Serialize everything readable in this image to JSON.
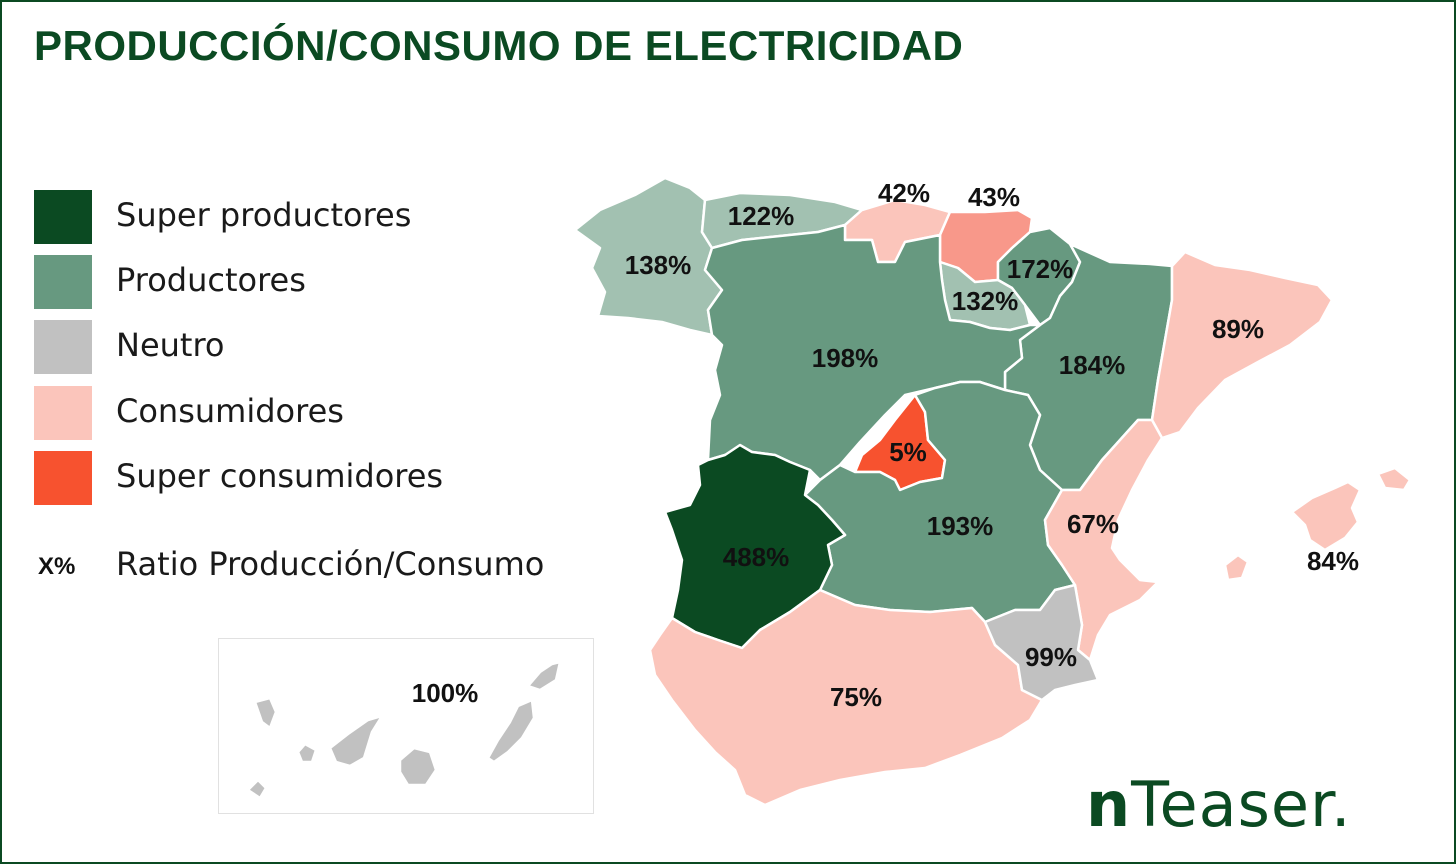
{
  "title": "PRODUCCIÓN/CONSUMO DE ELECTRICIDAD",
  "colors": {
    "super_productores": "#0b4a22",
    "productores": "#679980",
    "productores_light": "#a2c1b1",
    "neutro": "#c1c1c1",
    "consumidores": "#fbc5bb",
    "consumidores_dark": "#f8988a",
    "super_consumidores": "#f7522f",
    "frame": "#0b4a22"
  },
  "legend": {
    "items": [
      {
        "label": "Super productores",
        "color": "#0b4a22"
      },
      {
        "label": "Productores",
        "color": "#679980"
      },
      {
        "label": "Neutro",
        "color": "#c1c1c1"
      },
      {
        "label": "Consumidores",
        "color": "#fbc5bb"
      },
      {
        "label": "Super consumidores",
        "color": "#f7522f"
      }
    ],
    "ratio_symbol": "X%",
    "ratio_label": "Ratio Producción/Consumo"
  },
  "regions": {
    "galicia": {
      "name": "Galicia",
      "pct": "138%"
    },
    "asturias": {
      "name": "Asturias",
      "pct": "122%"
    },
    "cantabria": {
      "name": "Cantabria",
      "pct": "42%"
    },
    "pais_vasco": {
      "name": "País Vasco",
      "pct": "43%"
    },
    "navarra": {
      "name": "Navarra",
      "pct": "172%"
    },
    "la_rioja": {
      "name": "La Rioja",
      "pct": "132%"
    },
    "aragon": {
      "name": "Aragón",
      "pct": "184%"
    },
    "cataluna": {
      "name": "Cataluña",
      "pct": "89%"
    },
    "castilla_leon": {
      "name": "Castilla y León",
      "pct": "198%"
    },
    "madrid": {
      "name": "Madrid",
      "pct": "5%"
    },
    "castilla_la_mancha": {
      "name": "Castilla-La Mancha",
      "pct": "193%"
    },
    "valencia": {
      "name": "Comunidad Valenciana",
      "pct": "67%"
    },
    "extremadura": {
      "name": "Extremadura",
      "pct": "488%"
    },
    "andalucia": {
      "name": "Andalucía",
      "pct": "75%"
    },
    "murcia": {
      "name": "Murcia",
      "pct": "99%"
    },
    "baleares": {
      "name": "Baleares",
      "pct": "84%"
    },
    "canarias": {
      "name": "Canarias",
      "pct": "100%"
    }
  },
  "brand": {
    "bold": "n",
    "rest": "Teaser."
  }
}
